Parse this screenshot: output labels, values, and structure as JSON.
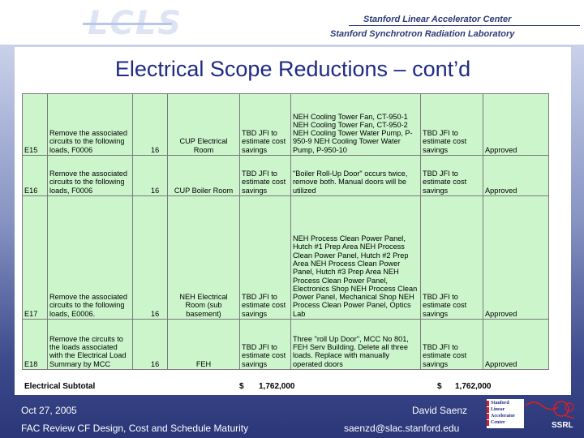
{
  "header": {
    "logo_text": "LCLS",
    "org_line1": "Stanford Linear Accelerator Center",
    "org_line2": "Stanford Synchrotron Radiation Laboratory"
  },
  "slide_title": "Electrical Scope Reductions – cont’d",
  "table": {
    "rows": [
      {
        "id": "E15",
        "description": "Remove the associated circuits to the following loads, F0006",
        "qty": "16",
        "location": "CUP Electrical Room",
        "cost": "TBD JFI to estimate cost savings",
        "note": "NEH Cooling Tower Fan, CT-950-1 NEH Cooling Tower Fan, CT-950-2 NEH Cooling Tower Water Pump, P-950-9 NEH Cooling Tower Water Pump, P-950-10",
        "cost2": "TBD JFI to estimate cost savings",
        "status": "Approved"
      },
      {
        "id": "E16",
        "description": "Remove the associated circuits to the following loads, F0006",
        "qty": "16",
        "location": "CUP Boiler Room",
        "cost": "TBD JFI to estimate cost savings",
        "note": "\"Boiler Roll-Up Door\" occurs twice, remove both. Manual doors will be utilized",
        "cost2": "TBD JFI to estimate cost savings",
        "status": "Approved"
      },
      {
        "id": "E17",
        "description": "Remove the associated circuits to the following loads, E0006.",
        "qty": "16",
        "location": "NEH Electrical Room (sub basement)",
        "cost": "TBD JFI to estimate cost savings",
        "note": "NEH Process Clean Power Panel, Hutch #1 Prep Area NEH Process Clean Power Panel, Hutch #2 Prep Area NEH Process Clean Power Panel, Hutch #3 Prep Area NEH Process Clean Power Panel, Electronics Shop NEH Process Clean Power Panel, Mechanical Shop NEH Process Clean Power Panel, Optics Lab",
        "cost2": "TBD JFI to estimate cost savings",
        "status": "Approved"
      },
      {
        "id": "E18",
        "description": "Remove the circuits to the loads associated with the Electrical Load Summary by MCC",
        "qty": "16",
        "location": "FEH",
        "cost": "TBD JFI to estimate cost savings",
        "note": "Three \"roll Up Door\", MCC No 801, FEH Serv Building. Delete all three loads. Replace with manually operated doors",
        "cost2": "TBD JFI to estimate cost savings",
        "status": "Approved"
      }
    ],
    "subtotal": {
      "label": "Electrical Subtotal",
      "currency1": "$",
      "amount1": "1,762,000",
      "currency2": "$",
      "amount2": "1,762,000"
    }
  },
  "footer": {
    "date": "Oct 27, 2005",
    "presenter": "David Saenz",
    "review": "FAC Review CF Design, Cost and Schedule Maturity",
    "email": "saenzd@slac.stanford.edu",
    "slac_logo_lines": [
      "Stanford",
      "Linear",
      "Accelerator",
      "Center"
    ],
    "ssrl_text": "SSRL"
  }
}
